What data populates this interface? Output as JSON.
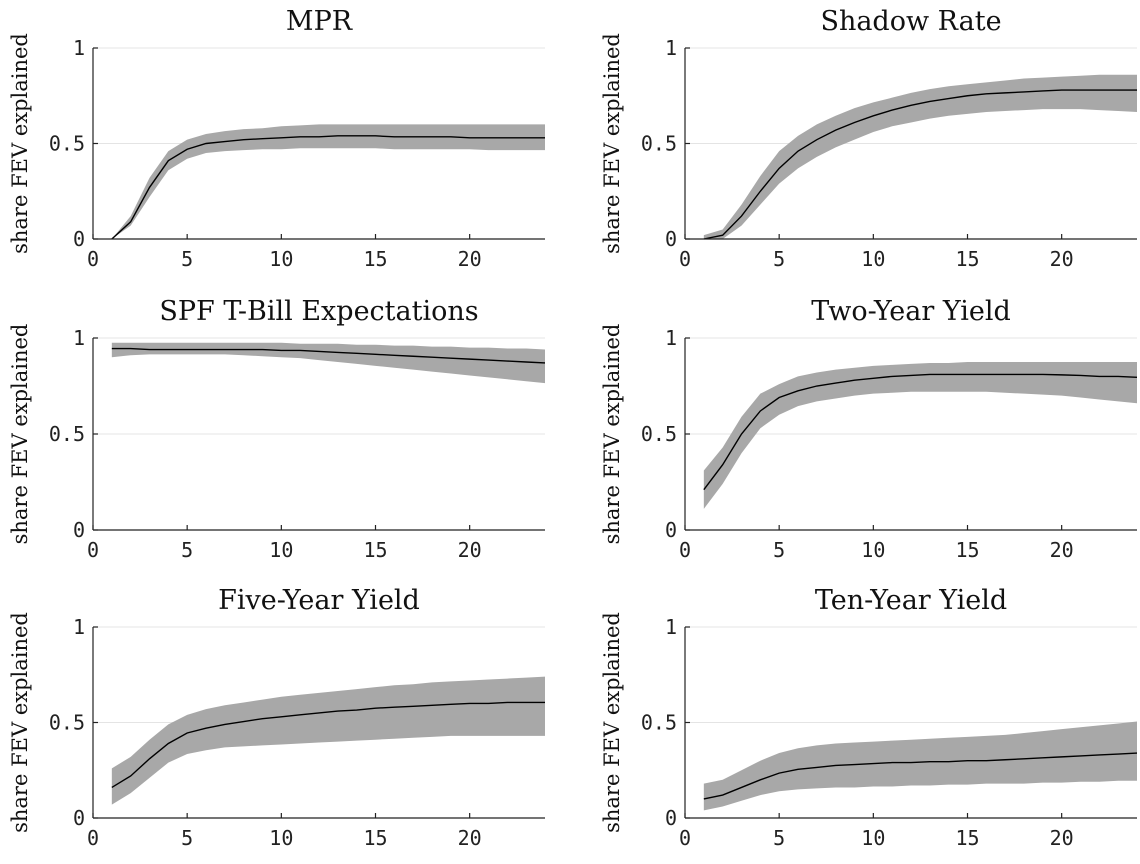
{
  "chart_data": [
    {
      "type": "area",
      "title": "MPR",
      "ylabel": "share FEV explained",
      "xlim": [
        0,
        24
      ],
      "ylim": [
        0,
        1
      ],
      "xticks": [
        0,
        5,
        10,
        15,
        20
      ],
      "yticks": [
        0,
        0.5,
        1
      ],
      "ytick_labels": [
        "0",
        "0.5",
        "1"
      ],
      "grid": true,
      "x": [
        1,
        2,
        3,
        4,
        5,
        6,
        7,
        8,
        9,
        10,
        11,
        12,
        13,
        14,
        15,
        16,
        17,
        18,
        19,
        20,
        21,
        22,
        23,
        24
      ],
      "series": [
        {
          "role": "median",
          "values": [
            0.0,
            0.09,
            0.27,
            0.41,
            0.47,
            0.5,
            0.51,
            0.52,
            0.525,
            0.53,
            0.535,
            0.535,
            0.54,
            0.54,
            0.54,
            0.535,
            0.535,
            0.535,
            0.535,
            0.53,
            0.53,
            0.53,
            0.53,
            0.53
          ]
        },
        {
          "role": "lower",
          "values": [
            0.0,
            0.07,
            0.22,
            0.36,
            0.42,
            0.45,
            0.46,
            0.465,
            0.47,
            0.47,
            0.475,
            0.475,
            0.475,
            0.475,
            0.475,
            0.47,
            0.47,
            0.47,
            0.47,
            0.47,
            0.465,
            0.465,
            0.465,
            0.465
          ]
        },
        {
          "role": "upper",
          "values": [
            0.0,
            0.12,
            0.32,
            0.46,
            0.52,
            0.55,
            0.565,
            0.575,
            0.58,
            0.59,
            0.595,
            0.6,
            0.6,
            0.6,
            0.6,
            0.6,
            0.6,
            0.6,
            0.6,
            0.6,
            0.6,
            0.6,
            0.6,
            0.6
          ]
        }
      ]
    },
    {
      "type": "area",
      "title": "Shadow Rate",
      "ylabel": "share FEV explained",
      "xlim": [
        0,
        24
      ],
      "ylim": [
        0,
        1
      ],
      "xticks": [
        0,
        5,
        10,
        15,
        20
      ],
      "yticks": [
        0,
        0.5,
        1
      ],
      "ytick_labels": [
        "0",
        "0.5",
        "1"
      ],
      "grid": true,
      "x": [
        1,
        2,
        3,
        4,
        5,
        6,
        7,
        8,
        9,
        10,
        11,
        12,
        13,
        14,
        15,
        16,
        17,
        18,
        19,
        20,
        21,
        22,
        23,
        24
      ],
      "series": [
        {
          "role": "median",
          "values": [
            0.0,
            0.02,
            0.12,
            0.25,
            0.37,
            0.46,
            0.52,
            0.57,
            0.61,
            0.645,
            0.675,
            0.7,
            0.72,
            0.735,
            0.75,
            0.76,
            0.765,
            0.77,
            0.775,
            0.78,
            0.78,
            0.78,
            0.78,
            0.78
          ]
        },
        {
          "role": "lower",
          "values": [
            0.0,
            0.0,
            0.07,
            0.18,
            0.29,
            0.37,
            0.43,
            0.48,
            0.52,
            0.56,
            0.59,
            0.61,
            0.63,
            0.645,
            0.655,
            0.665,
            0.67,
            0.675,
            0.68,
            0.68,
            0.68,
            0.675,
            0.67,
            0.665
          ]
        },
        {
          "role": "upper",
          "values": [
            0.02,
            0.05,
            0.18,
            0.33,
            0.46,
            0.54,
            0.6,
            0.645,
            0.685,
            0.715,
            0.74,
            0.765,
            0.785,
            0.8,
            0.81,
            0.82,
            0.83,
            0.84,
            0.845,
            0.85,
            0.855,
            0.86,
            0.86,
            0.86
          ]
        }
      ]
    },
    {
      "type": "area",
      "title": "SPF T-Bill Expectations",
      "ylabel": "share FEV explained",
      "xlim": [
        0,
        24
      ],
      "ylim": [
        0,
        1
      ],
      "xticks": [
        0,
        5,
        10,
        15,
        20
      ],
      "yticks": [
        0,
        0.5,
        1
      ],
      "ytick_labels": [
        "0",
        "0.5",
        "1"
      ],
      "grid": true,
      "x": [
        1,
        2,
        3,
        4,
        5,
        6,
        7,
        8,
        9,
        10,
        11,
        12,
        13,
        14,
        15,
        16,
        17,
        18,
        19,
        20,
        21,
        22,
        23,
        24
      ],
      "series": [
        {
          "role": "median",
          "values": [
            0.945,
            0.945,
            0.94,
            0.94,
            0.94,
            0.94,
            0.94,
            0.94,
            0.94,
            0.935,
            0.935,
            0.93,
            0.925,
            0.92,
            0.915,
            0.91,
            0.905,
            0.9,
            0.895,
            0.89,
            0.885,
            0.88,
            0.875,
            0.87
          ]
        },
        {
          "role": "lower",
          "values": [
            0.9,
            0.91,
            0.915,
            0.915,
            0.915,
            0.915,
            0.915,
            0.91,
            0.905,
            0.9,
            0.895,
            0.885,
            0.875,
            0.865,
            0.855,
            0.845,
            0.835,
            0.825,
            0.815,
            0.805,
            0.795,
            0.785,
            0.775,
            0.765
          ]
        },
        {
          "role": "upper",
          "values": [
            0.975,
            0.975,
            0.975,
            0.975,
            0.975,
            0.975,
            0.975,
            0.975,
            0.975,
            0.975,
            0.97,
            0.97,
            0.97,
            0.965,
            0.965,
            0.96,
            0.96,
            0.955,
            0.955,
            0.95,
            0.95,
            0.945,
            0.945,
            0.94
          ]
        }
      ]
    },
    {
      "type": "area",
      "title": "Two-Year Yield",
      "ylabel": "share FEV explained",
      "xlim": [
        0,
        24
      ],
      "ylim": [
        0,
        1
      ],
      "xticks": [
        0,
        5,
        10,
        15,
        20
      ],
      "yticks": [
        0,
        0.5,
        1
      ],
      "ytick_labels": [
        "0",
        "0.5",
        "1"
      ],
      "grid": true,
      "x": [
        1,
        2,
        3,
        4,
        5,
        6,
        7,
        8,
        9,
        10,
        11,
        12,
        13,
        14,
        15,
        16,
        17,
        18,
        19,
        20,
        21,
        22,
        23,
        24
      ],
      "series": [
        {
          "role": "median",
          "values": [
            0.21,
            0.34,
            0.5,
            0.62,
            0.69,
            0.725,
            0.75,
            0.765,
            0.78,
            0.79,
            0.8,
            0.805,
            0.81,
            0.81,
            0.81,
            0.81,
            0.81,
            0.81,
            0.81,
            0.808,
            0.805,
            0.8,
            0.8,
            0.795
          ]
        },
        {
          "role": "lower",
          "values": [
            0.11,
            0.24,
            0.4,
            0.53,
            0.6,
            0.645,
            0.67,
            0.685,
            0.7,
            0.71,
            0.715,
            0.72,
            0.72,
            0.72,
            0.72,
            0.72,
            0.715,
            0.71,
            0.705,
            0.7,
            0.69,
            0.68,
            0.67,
            0.66
          ]
        },
        {
          "role": "upper",
          "values": [
            0.31,
            0.43,
            0.59,
            0.71,
            0.76,
            0.8,
            0.82,
            0.835,
            0.845,
            0.855,
            0.86,
            0.865,
            0.87,
            0.87,
            0.875,
            0.875,
            0.875,
            0.875,
            0.875,
            0.875,
            0.875,
            0.875,
            0.875,
            0.875
          ]
        }
      ]
    },
    {
      "type": "area",
      "title": "Five-Year Yield",
      "ylabel": "share FEV explained",
      "xlim": [
        0,
        24
      ],
      "ylim": [
        0,
        1
      ],
      "xticks": [
        0,
        5,
        10,
        15,
        20
      ],
      "yticks": [
        0,
        0.5,
        1
      ],
      "ytick_labels": [
        "0",
        "0.5",
        "1"
      ],
      "grid": true,
      "x": [
        1,
        2,
        3,
        4,
        5,
        6,
        7,
        8,
        9,
        10,
        11,
        12,
        13,
        14,
        15,
        16,
        17,
        18,
        19,
        20,
        21,
        22,
        23,
        24
      ],
      "series": [
        {
          "role": "median",
          "values": [
            0.16,
            0.22,
            0.31,
            0.39,
            0.445,
            0.47,
            0.49,
            0.505,
            0.52,
            0.53,
            0.54,
            0.55,
            0.56,
            0.565,
            0.575,
            0.58,
            0.585,
            0.59,
            0.595,
            0.6,
            0.6,
            0.605,
            0.605,
            0.605
          ]
        },
        {
          "role": "lower",
          "values": [
            0.07,
            0.13,
            0.21,
            0.29,
            0.335,
            0.355,
            0.37,
            0.375,
            0.38,
            0.385,
            0.39,
            0.395,
            0.4,
            0.405,
            0.41,
            0.415,
            0.42,
            0.425,
            0.43,
            0.43,
            0.43,
            0.43,
            0.43,
            0.43
          ]
        },
        {
          "role": "upper",
          "values": [
            0.26,
            0.32,
            0.41,
            0.49,
            0.54,
            0.57,
            0.59,
            0.605,
            0.62,
            0.635,
            0.645,
            0.655,
            0.665,
            0.675,
            0.685,
            0.695,
            0.7,
            0.71,
            0.715,
            0.72,
            0.725,
            0.73,
            0.735,
            0.74
          ]
        }
      ]
    },
    {
      "type": "area",
      "title": "Ten-Year Yield",
      "ylabel": "share FEV explained",
      "xlim": [
        0,
        24
      ],
      "ylim": [
        0,
        1
      ],
      "xticks": [
        0,
        5,
        10,
        15,
        20
      ],
      "yticks": [
        0,
        0.5,
        1
      ],
      "ytick_labels": [
        "0",
        "0.5",
        "1"
      ],
      "grid": true,
      "x": [
        1,
        2,
        3,
        4,
        5,
        6,
        7,
        8,
        9,
        10,
        11,
        12,
        13,
        14,
        15,
        16,
        17,
        18,
        19,
        20,
        21,
        22,
        23,
        24
      ],
      "series": [
        {
          "role": "median",
          "values": [
            0.1,
            0.12,
            0.16,
            0.2,
            0.235,
            0.255,
            0.265,
            0.275,
            0.28,
            0.285,
            0.29,
            0.29,
            0.295,
            0.295,
            0.3,
            0.3,
            0.305,
            0.31,
            0.315,
            0.32,
            0.325,
            0.33,
            0.335,
            0.34
          ]
        },
        {
          "role": "lower",
          "values": [
            0.04,
            0.06,
            0.09,
            0.12,
            0.14,
            0.15,
            0.155,
            0.16,
            0.16,
            0.165,
            0.165,
            0.17,
            0.17,
            0.175,
            0.175,
            0.18,
            0.18,
            0.18,
            0.185,
            0.185,
            0.19,
            0.19,
            0.195,
            0.195
          ]
        },
        {
          "role": "upper",
          "values": [
            0.18,
            0.2,
            0.25,
            0.3,
            0.34,
            0.365,
            0.38,
            0.39,
            0.395,
            0.4,
            0.405,
            0.41,
            0.415,
            0.42,
            0.425,
            0.43,
            0.435,
            0.445,
            0.455,
            0.465,
            0.475,
            0.485,
            0.495,
            0.505
          ]
        }
      ]
    }
  ]
}
